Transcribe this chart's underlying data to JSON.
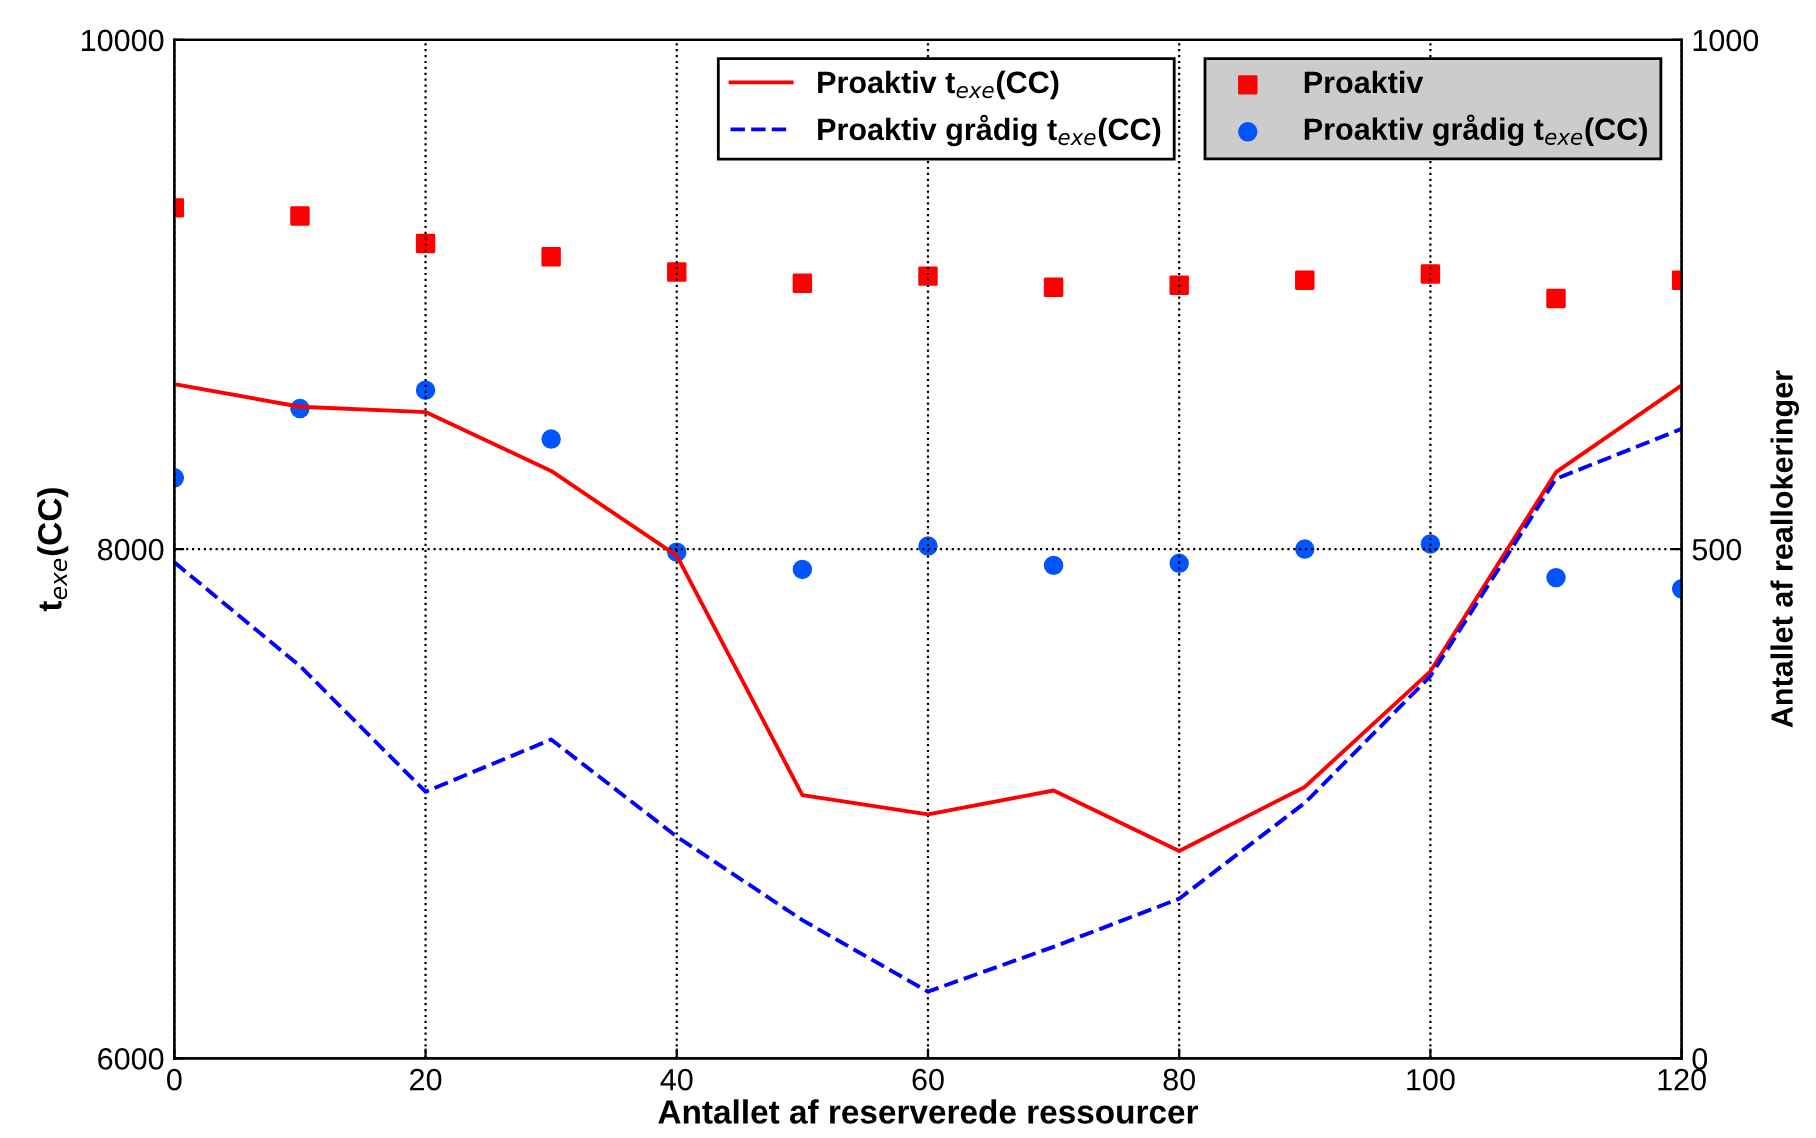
{
  "chart_data": {
    "type": "line",
    "xlabel": "Antallet af reserverede ressourcer",
    "ylabel": "t$_{exe}$(CC)",
    "y2label": "Antallet af reallokeringer",
    "x": [
      0,
      10,
      20,
      30,
      40,
      50,
      60,
      70,
      80,
      90,
      100,
      110,
      120
    ],
    "xlim": [
      0,
      120
    ],
    "xticks": [
      0,
      20,
      40,
      60,
      80,
      100,
      120
    ],
    "ylim": [
      6000,
      10000
    ],
    "yticks": [
      6000,
      8000,
      10000
    ],
    "y2lim": [
      0,
      1000
    ],
    "y2ticks": [
      0,
      500,
      1000
    ],
    "grid": true,
    "legend": "top right",
    "series": [
      {
        "name": "Proaktiv t$_{exe}$(CC)",
        "color": "#ff0000",
        "line_style": "solid",
        "values": [
          8648,
          8559,
          8538,
          8307,
          7974,
          7034,
          6958,
          7052,
          6814,
          7066,
          7520,
          8302,
          8643
        ]
      },
      {
        "name": "Proaktiv grådig t$_{exe}$(CC)",
        "color": "#0000ff",
        "line_style": "dashed",
        "values": [
          7948,
          7541,
          7047,
          7252,
          6871,
          6543,
          6262,
          6438,
          6627,
          7003,
          7501,
          8276,
          8472
        ]
      },
      {
        "name": "Proaktiv",
        "type": "scatter",
        "axis": "y2",
        "marker": "square",
        "color": "#ff0000",
        "values": [
          835,
          827,
          800,
          787,
          772,
          761,
          768,
          757,
          759,
          764,
          770,
          746,
          764
        ]
      },
      {
        "name": "Proaktiv grådig t$_{exe}$(CC)",
        "type": "scatter",
        "axis": "y2",
        "marker": "circle",
        "color": "#0055ff",
        "values": [
          570,
          638,
          656,
          608,
          497,
          480,
          503,
          484,
          486,
          500,
          505,
          472,
          461
        ]
      }
    ]
  }
}
